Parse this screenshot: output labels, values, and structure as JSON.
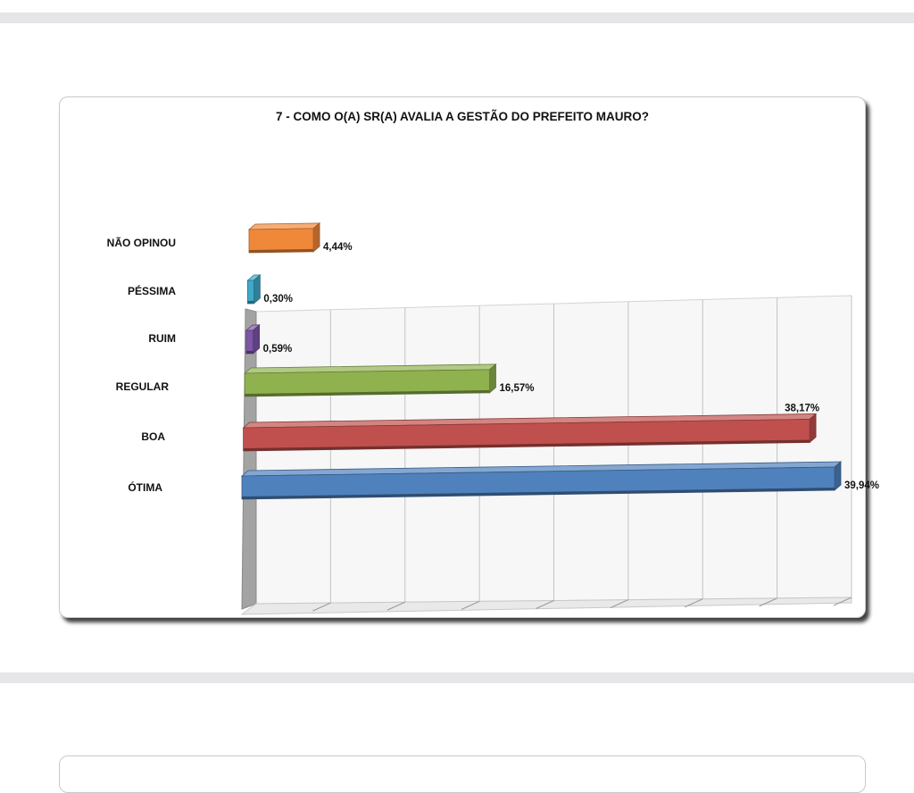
{
  "chart_data": {
    "type": "bar",
    "orientation": "horizontal",
    "title": "7 - COMO O(A) SR(A) AVALIA A GESTÃO DO PREFEITO MAURO?",
    "categories": [
      "NÃO OPINOU",
      "PÉSSIMA",
      "RUIM",
      "REGULAR",
      "BOA",
      "ÓTIMA"
    ],
    "values": [
      4.44,
      0.3,
      0.59,
      16.57,
      38.17,
      39.94
    ],
    "value_labels": [
      "4,44%",
      "0,30%",
      "0,59%",
      "16,57%",
      "38,17%",
      "39,94%"
    ],
    "colors": [
      "#f0883a",
      "#3fa9c9",
      "#7d56a8",
      "#8fb24f",
      "#c0504d",
      "#4f81bd"
    ],
    "xlim": [
      0,
      40
    ],
    "grid": true,
    "legend": "none",
    "style": "3d"
  }
}
